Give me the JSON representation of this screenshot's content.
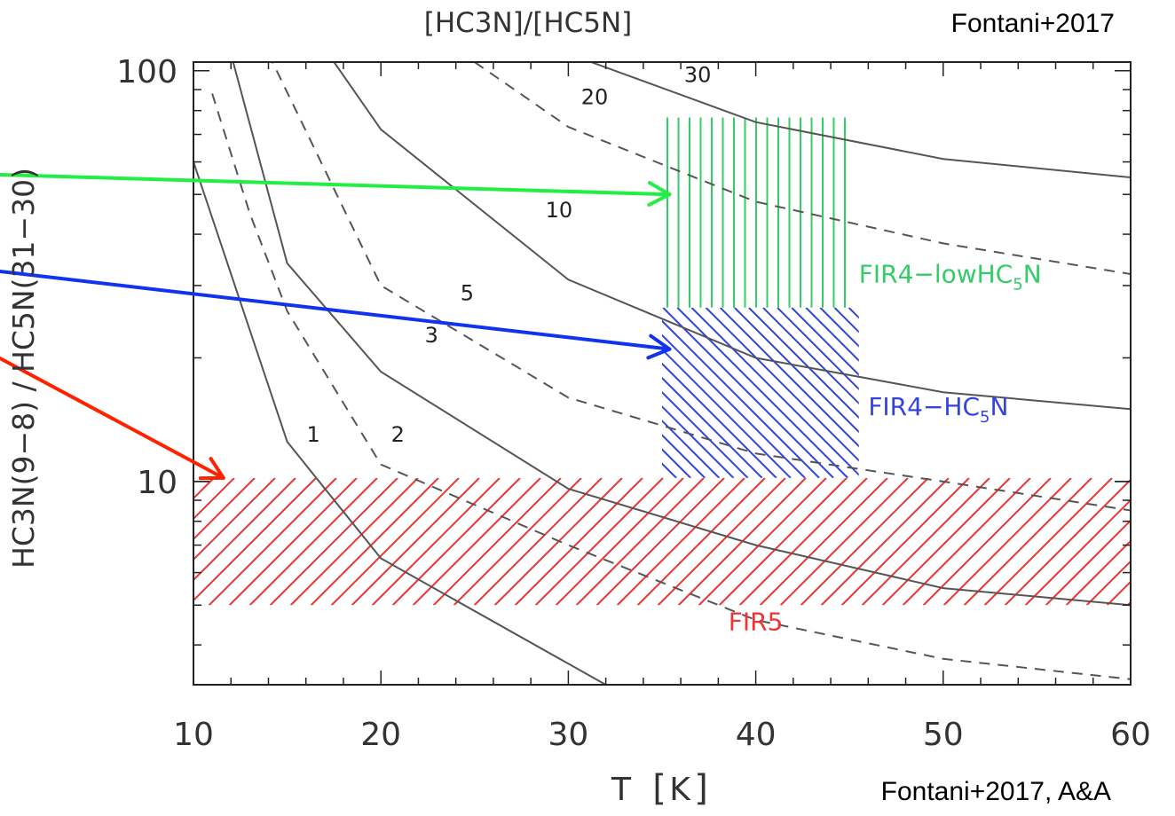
{
  "chart_data": {
    "type": "line",
    "top_label": "[HC3N]/[HC5N]",
    "credit_top": "Fontani+2017",
    "credit_bottom": "Fontani+2017, A&A",
    "ylabel": "HC3N(9−8)  /  HC5N(31−30)",
    "x_ticks": [
      "10",
      "20",
      "30",
      "40",
      "50",
      "60"
    ],
    "y_ticks": [
      "10",
      "100"
    ],
    "x_unit": "T",
    "x_unit_bracket": "K",
    "xlim": [
      10,
      60
    ],
    "ylim": [
      3.2,
      105
    ],
    "y_scale": "log",
    "series": [
      {
        "name": "1",
        "style": "solid",
        "points": [
          [
            10,
            60
          ],
          [
            15,
            12.5
          ],
          [
            20,
            6.5
          ],
          [
            30,
            3.6
          ],
          [
            32,
            3.2
          ]
        ],
        "label_at": [
          16.4,
          12.5
        ]
      },
      {
        "name": "2",
        "style": "dashed",
        "points": [
          [
            11,
            88
          ],
          [
            13,
            45
          ],
          [
            15,
            26
          ],
          [
            20,
            11
          ],
          [
            30,
            7
          ],
          [
            40,
            4.6
          ],
          [
            50,
            3.7
          ],
          [
            60,
            3.3
          ]
        ],
        "label_at": [
          20.9,
          12.5
        ]
      },
      {
        "name": "3",
        "style": "solid",
        "points": [
          [
            12,
            110
          ],
          [
            15,
            34
          ],
          [
            20,
            18.5
          ],
          [
            30,
            9.6
          ],
          [
            40,
            7
          ],
          [
            50,
            5.5
          ],
          [
            60,
            5
          ]
        ],
        "label_at": [
          22.7,
          21.8
        ]
      },
      {
        "name": "5",
        "style": "dashed",
        "points": [
          [
            14,
            110
          ],
          [
            20,
            30
          ],
          [
            30,
            16
          ],
          [
            40,
            11.7
          ],
          [
            50,
            10
          ],
          [
            60,
            8.5
          ]
        ],
        "label_at": [
          24.6,
          27.6
        ]
      },
      {
        "name": "10",
        "style": "solid",
        "points": [
          [
            17.5,
            105
          ],
          [
            20,
            72
          ],
          [
            30,
            31
          ],
          [
            40,
            20
          ],
          [
            50,
            16.5
          ],
          [
            60,
            15
          ]
        ],
        "label_at": [
          29.5,
          44
        ]
      },
      {
        "name": "20",
        "style": "dashed",
        "points": [
          [
            25,
            105
          ],
          [
            30,
            73
          ],
          [
            40,
            48
          ],
          [
            50,
            38
          ],
          [
            60,
            32
          ]
        ],
        "label_at": [
          31.4,
          83
        ]
      },
      {
        "name": "30",
        "style": "solid",
        "points": [
          [
            30,
            110
          ],
          [
            40,
            75
          ],
          [
            50,
            61
          ],
          [
            60,
            55
          ]
        ],
        "label_at": [
          36.9,
          94
        ]
      }
    ],
    "regions": [
      {
        "name": "FIR4−lowHC",
        "subscript": "5",
        "suffix": "N",
        "color": "#33cc66",
        "hatch": "vertical",
        "x": [
          35,
          45
        ],
        "y": [
          26.5,
          77
        ],
        "label_at": [
          45.5,
          30.5
        ]
      },
      {
        "name": "FIR4−HC",
        "subscript": "5",
        "suffix": "N",
        "color": "#3344dd",
        "hatch": "backslash",
        "x": [
          35,
          45.5
        ],
        "y": [
          10.2,
          26.5
        ],
        "label_at": [
          46,
          14.5
        ]
      },
      {
        "name": "FIR5",
        "color": "#ee3333",
        "hatch": "slash",
        "x": [
          10,
          60
        ],
        "y": [
          5,
          10.2
        ],
        "label_at": [
          40,
          4.35
        ]
      }
    ],
    "arrows": [
      {
        "color": "#22ee44",
        "to": [
          35.4,
          50
        ]
      },
      {
        "color": "#1133ee",
        "to": [
          35.4,
          21
        ]
      },
      {
        "color": "#ff2200",
        "to": [
          11.6,
          10.2
        ]
      }
    ]
  }
}
